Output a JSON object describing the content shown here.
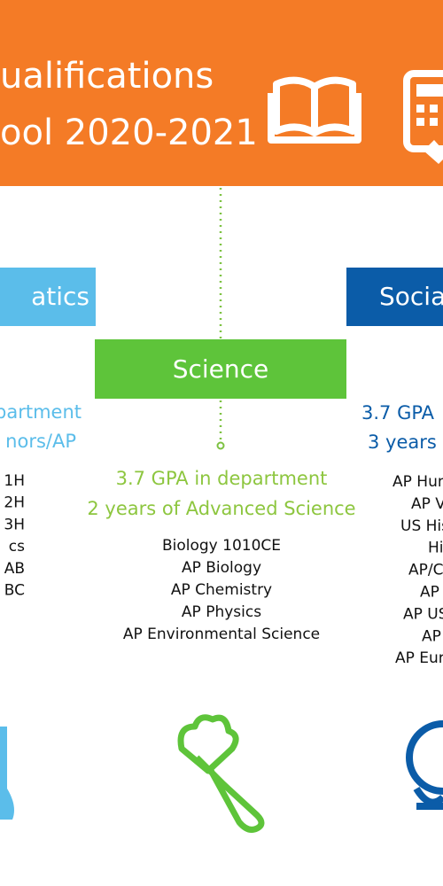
{
  "header": {
    "title_lines": [
      "ualifications",
      "ool 2020-2021"
    ]
  },
  "columns": [
    {
      "box": "atics",
      "requirements": [
        "partment",
        "nors/AP"
      ],
      "courses": [
        "1H",
        "2H",
        "3H",
        "cs",
        "AB",
        "BC"
      ]
    },
    {
      "box": "Science",
      "requirements": [
        "3.7 GPA in department",
        "2 years of Advanced Science"
      ],
      "courses": [
        "Biology 1010CE",
        "AP Biology",
        "AP Chemistry",
        "AP Physics",
        "AP Environmental Science"
      ]
    },
    {
      "box": "Socia",
      "requirements": [
        "3.7 GPA",
        "3 years"
      ],
      "courses": [
        "AP Hum",
        "AP V",
        "US His",
        "Hi",
        "AP/C",
        "AP",
        "AP US",
        "AP",
        "AP Eur"
      ]
    }
  ]
}
